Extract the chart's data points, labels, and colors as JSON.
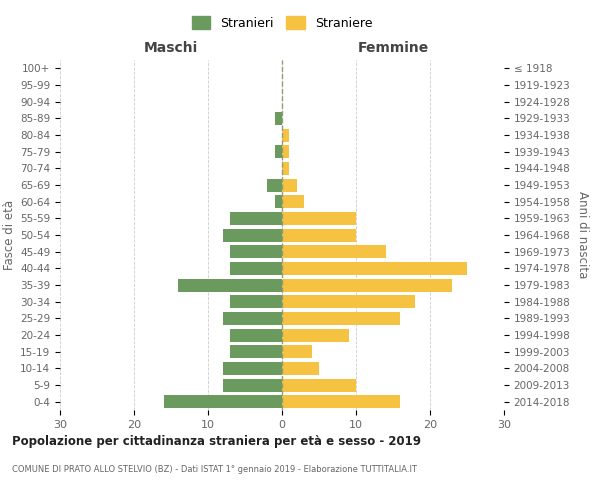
{
  "age_groups": [
    "100+",
    "95-99",
    "90-94",
    "85-89",
    "80-84",
    "75-79",
    "70-74",
    "65-69",
    "60-64",
    "55-59",
    "50-54",
    "45-49",
    "40-44",
    "35-39",
    "30-34",
    "25-29",
    "20-24",
    "15-19",
    "10-14",
    "5-9",
    "0-4"
  ],
  "birth_years": [
    "≤ 1918",
    "1919-1923",
    "1924-1928",
    "1929-1933",
    "1934-1938",
    "1939-1943",
    "1944-1948",
    "1949-1953",
    "1954-1958",
    "1959-1963",
    "1964-1968",
    "1969-1973",
    "1974-1978",
    "1979-1983",
    "1984-1988",
    "1989-1993",
    "1994-1998",
    "1999-2003",
    "2004-2008",
    "2009-2013",
    "2014-2018"
  ],
  "maschi": [
    0,
    0,
    0,
    1,
    0,
    1,
    0,
    2,
    1,
    7,
    8,
    7,
    7,
    14,
    7,
    8,
    7,
    7,
    8,
    8,
    16
  ],
  "femmine": [
    0,
    0,
    0,
    0,
    1,
    1,
    1,
    2,
    3,
    10,
    10,
    14,
    25,
    23,
    18,
    16,
    9,
    4,
    5,
    10,
    16
  ],
  "color_maschi": "#6a9a5e",
  "color_femmine": "#f5c242",
  "title": "Popolazione per cittadinanza straniera per età e sesso - 2019",
  "subtitle": "COMUNE DI PRATO ALLO STELVIO (BZ) - Dati ISTAT 1° gennaio 2019 - Elaborazione TUTTITALIA.IT",
  "xlabel_left": "Maschi",
  "xlabel_right": "Femmine",
  "ylabel_left": "Fasce di età",
  "ylabel_right": "Anni di nascita",
  "legend_maschi": "Stranieri",
  "legend_femmine": "Straniere",
  "xlim": 30,
  "background_color": "#ffffff",
  "grid_color": "#cccccc"
}
